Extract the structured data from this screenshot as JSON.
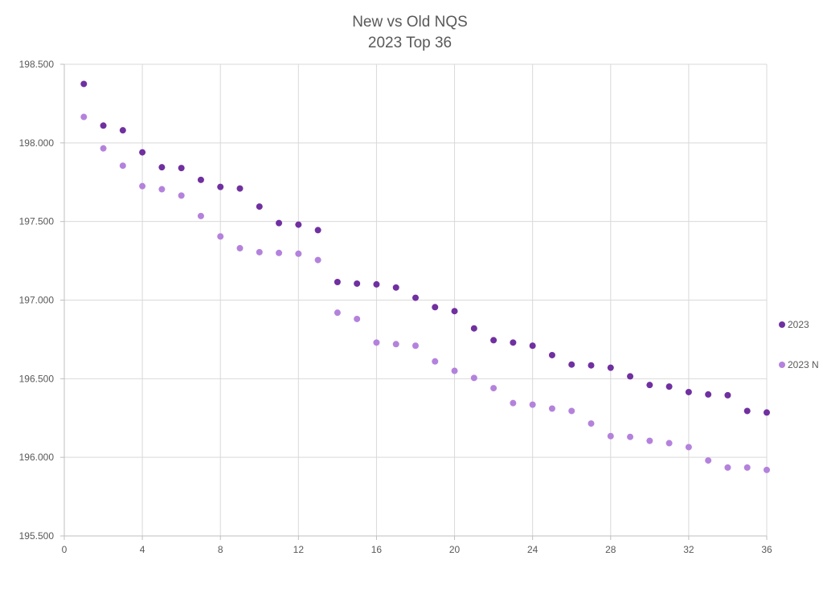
{
  "chart_data": {
    "type": "scatter",
    "title": [
      "New vs Old NQS",
      "2023 Top 36"
    ],
    "xlabel": "",
    "ylabel": "",
    "xlim": [
      0,
      36
    ],
    "ylim": [
      195.5,
      198.5
    ],
    "x_ticks": [
      0,
      4,
      8,
      12,
      16,
      20,
      24,
      28,
      32,
      36
    ],
    "x_tick_labels": [
      "0",
      "4",
      "8",
      "12",
      "16",
      "20",
      "24",
      "28",
      "32",
      "36"
    ],
    "y_ticks": [
      195.5,
      196.0,
      196.5,
      197.0,
      197.5,
      198.0,
      198.5
    ],
    "y_tick_labels": [
      "195.500",
      "196.000",
      "196.500",
      "197.000",
      "197.500",
      "198.000",
      "198.500"
    ],
    "grid": true,
    "legend_position": "right",
    "x": [
      1,
      2,
      3,
      4,
      5,
      6,
      7,
      8,
      9,
      10,
      11,
      12,
      13,
      14,
      15,
      16,
      17,
      18,
      19,
      20,
      21,
      22,
      23,
      24,
      25,
      26,
      27,
      28,
      29,
      30,
      31,
      32,
      33,
      34,
      35,
      36
    ],
    "series": [
      {
        "name": "2023",
        "color": "#7030a0",
        "values": [
          198.375,
          198.11,
          198.08,
          197.94,
          197.845,
          197.84,
          197.765,
          197.72,
          197.71,
          197.595,
          197.49,
          197.48,
          197.445,
          197.115,
          197.105,
          197.1,
          197.08,
          197.015,
          196.955,
          196.93,
          196.82,
          196.745,
          196.73,
          196.71,
          196.65,
          196.59,
          196.585,
          196.57,
          196.515,
          196.46,
          196.45,
          196.415,
          196.4,
          196.395,
          196.295,
          196.285
        ]
      },
      {
        "name": "2023 N",
        "color": "#b482dc",
        "values": [
          198.165,
          197.965,
          197.855,
          197.725,
          197.705,
          197.665,
          197.535,
          197.405,
          197.33,
          197.305,
          197.3,
          197.295,
          197.255,
          196.92,
          196.88,
          196.73,
          196.72,
          196.71,
          196.61,
          196.55,
          196.505,
          196.44,
          196.345,
          196.335,
          196.31,
          196.295,
          196.215,
          196.135,
          196.13,
          196.105,
          196.09,
          196.065,
          195.98,
          195.935,
          195.935,
          195.92
        ]
      }
    ]
  }
}
